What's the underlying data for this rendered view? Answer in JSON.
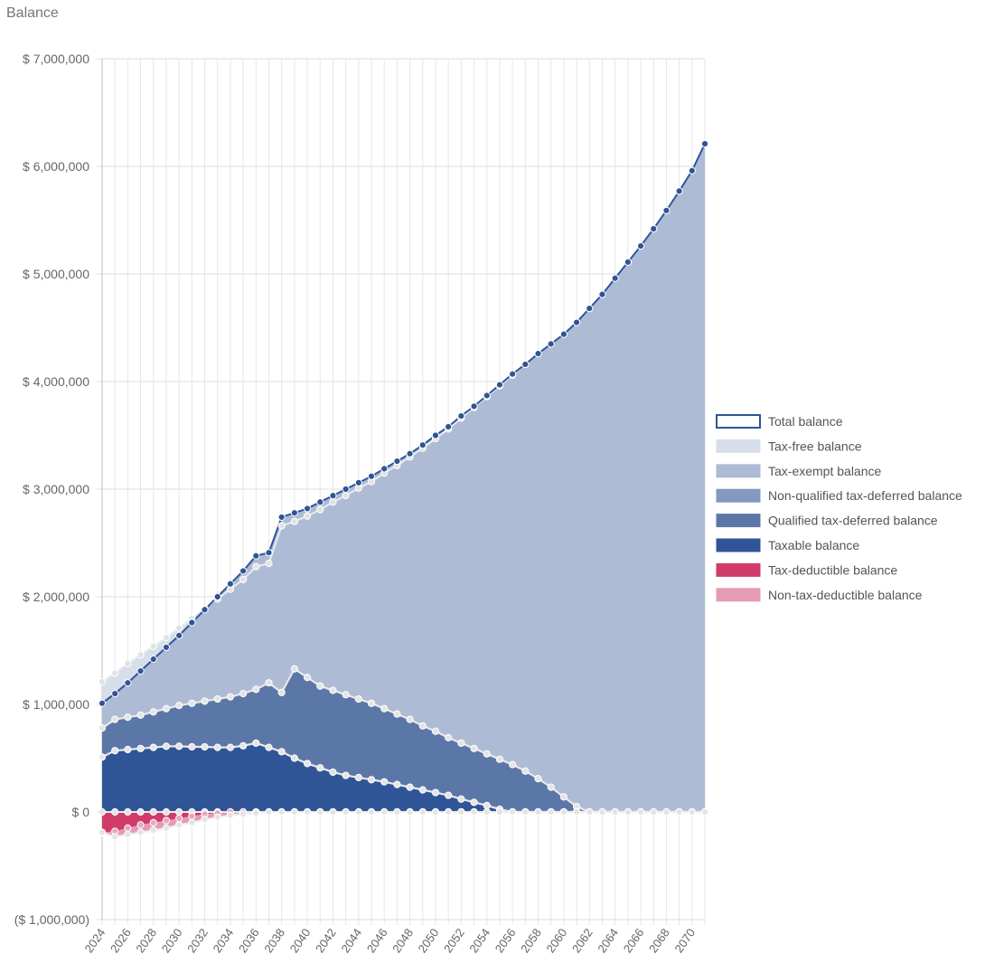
{
  "chart_data": {
    "type": "area",
    "title": "Balance",
    "y_ticks": [
      {
        "value": 7000000,
        "label": "$ 7,000,000"
      },
      {
        "value": 6000000,
        "label": "$ 6,000,000"
      },
      {
        "value": 5000000,
        "label": "$ 5,000,000"
      },
      {
        "value": 4000000,
        "label": "$ 4,000,000"
      },
      {
        "value": 3000000,
        "label": "$ 3,000,000"
      },
      {
        "value": 2000000,
        "label": "$ 2,000,000"
      },
      {
        "value": 1000000,
        "label": "$ 1,000,000"
      },
      {
        "value": 0,
        "label": "$ 0"
      },
      {
        "value": -1000000,
        "label": "($ 1,000,000)"
      }
    ],
    "ylim": [
      -1000000,
      7000000
    ],
    "x_start": 2024,
    "x_end": 2071,
    "x_tick_labels": [
      "2024",
      "2026",
      "2028",
      "2030",
      "2032",
      "2034",
      "2036",
      "2038",
      "2040",
      "2042",
      "2044",
      "2046",
      "2048",
      "2050",
      "2052",
      "2054",
      "2056",
      "2058",
      "2060",
      "2062",
      "2064",
      "2066",
      "2068",
      "2070"
    ],
    "colors": {
      "total": "#2f5597",
      "tax_free": "#d6dee9",
      "tax_exempt": "#adbbd4",
      "nonqual": "#8499bf",
      "qual": "#5b77a8",
      "taxable": "#2f5597",
      "tax_deductible": "#d13b6a",
      "non_tax_deductible": "#e59bb5",
      "marker_light": "#e4e4e4"
    },
    "legend": [
      {
        "key": "total",
        "label": "Total balance",
        "style": "outline"
      },
      {
        "key": "tax_free",
        "label": "Tax-free balance",
        "style": "fill"
      },
      {
        "key": "tax_exempt",
        "label": "Tax-exempt balance",
        "style": "fill"
      },
      {
        "key": "nonqual",
        "label": "Non-qualified tax-deferred balance",
        "style": "fill"
      },
      {
        "key": "qual",
        "label": "Qualified tax-deferred balance",
        "style": "fill"
      },
      {
        "key": "taxable",
        "label": "Taxable balance",
        "style": "fill"
      },
      {
        "key": "tax_deductible",
        "label": "Tax-deductible balance",
        "style": "fill"
      },
      {
        "key": "non_tax_deductible",
        "label": "Non-tax-deductible balance",
        "style": "fill"
      }
    ],
    "series": {
      "total": [
        1010000,
        1100000,
        1200000,
        1310000,
        1420000,
        1530000,
        1640000,
        1760000,
        1880000,
        2000000,
        2120000,
        2240000,
        2380000,
        2410000,
        2740000,
        2780000,
        2820000,
        2880000,
        2940000,
        3000000,
        3060000,
        3120000,
        3190000,
        3260000,
        3330000,
        3410000,
        3500000,
        3580000,
        3680000,
        3770000,
        3870000,
        3970000,
        4070000,
        4160000,
        4260000,
        4350000,
        4440000,
        4550000,
        4680000,
        4810000,
        4960000,
        5110000,
        5260000,
        5420000,
        5590000,
        5770000,
        5960000,
        6210000
      ],
      "tax_free_top": [
        1210000,
        1290000,
        1380000,
        1460000,
        1540000,
        1620000,
        1710000,
        1800000,
        1890000,
        1980000,
        2070000,
        2160000,
        2280000,
        2310000,
        2660000,
        2700000,
        2750000,
        2810000,
        2880000,
        2940000,
        3010000,
        3070000,
        3150000,
        3220000,
        3300000,
        3380000,
        3470000,
        3560000,
        3660000,
        3760000,
        3860000,
        3960000,
        4060000,
        4160000,
        4260000,
        4350000,
        4440000,
        4550000,
        4680000,
        4810000,
        4960000,
        5110000,
        5260000,
        5420000,
        5590000,
        5770000,
        5960000,
        6210000
      ],
      "nonqual_top": [
        780000,
        860000,
        880000,
        900000,
        930000,
        960000,
        990000,
        1010000,
        1030000,
        1050000,
        1070000,
        1100000,
        1140000,
        1200000,
        1110000,
        1330000,
        1250000,
        1170000,
        1130000,
        1090000,
        1050000,
        1010000,
        960000,
        910000,
        860000,
        800000,
        750000,
        690000,
        640000,
        590000,
        540000,
        490000,
        440000,
        380000,
        310000,
        230000,
        140000,
        50000,
        0,
        0,
        0,
        0,
        0,
        0,
        0,
        0,
        0,
        0
      ],
      "taxable_top": [
        510000,
        570000,
        580000,
        590000,
        600000,
        610000,
        610000,
        605000,
        605000,
        600000,
        600000,
        615000,
        640000,
        600000,
        560000,
        500000,
        450000,
        410000,
        370000,
        340000,
        320000,
        300000,
        280000,
        255000,
        230000,
        205000,
        180000,
        155000,
        120000,
        90000,
        60000,
        25000,
        0,
        0,
        0,
        0,
        0,
        0,
        0,
        0,
        0,
        0,
        0,
        0,
        0,
        0,
        0,
        0
      ],
      "tax_deductible_bottom": [
        -190000,
        -180000,
        -150000,
        -120000,
        -100000,
        -80000,
        -60000,
        -40000,
        -20000,
        -10000,
        0,
        0,
        0,
        0,
        0,
        0,
        0,
        0,
        0,
        0,
        0,
        0,
        0,
        0,
        0,
        0,
        0,
        0,
        0,
        0,
        0,
        0,
        0,
        0,
        0,
        0,
        0,
        0,
        0,
        0,
        0,
        0,
        0,
        0,
        0,
        0,
        0,
        0
      ],
      "non_tax_deductible_bottom": [
        -190000,
        -230000,
        -210000,
        -190000,
        -170000,
        -150000,
        -120000,
        -100000,
        -70000,
        -50000,
        -30000,
        -20000,
        -10000,
        0,
        0,
        0,
        0,
        0,
        0,
        0,
        0,
        0,
        0,
        0,
        0,
        0,
        0,
        0,
        0,
        0,
        0,
        0,
        0,
        0,
        0,
        0,
        0,
        0,
        0,
        0,
        0,
        0,
        0,
        0,
        0,
        0,
        0,
        0
      ]
    }
  }
}
